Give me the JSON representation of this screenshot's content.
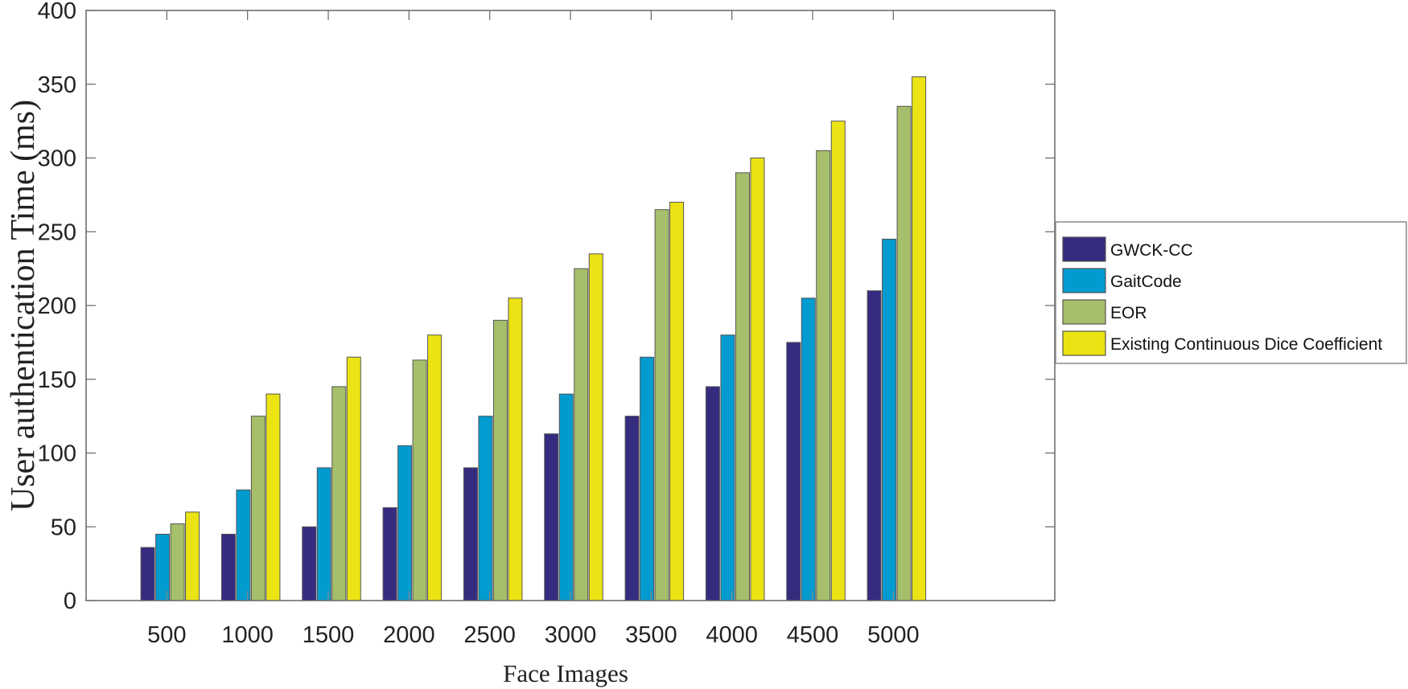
{
  "chart_data": {
    "type": "bar",
    "title": "",
    "xlabel": "Face Images",
    "ylabel": "User authentication Time (ms)",
    "categories": [
      "500",
      "1000",
      "1500",
      "2000",
      "2500",
      "3000",
      "3500",
      "4000",
      "4500",
      "5000"
    ],
    "x_values": [
      500,
      1000,
      1500,
      2000,
      2500,
      3000,
      3500,
      4000,
      4500,
      5000
    ],
    "xlim": [
      0,
      6000
    ],
    "ylim": [
      0,
      400
    ],
    "yticks": [
      0,
      50,
      100,
      150,
      200,
      250,
      300,
      350,
      400
    ],
    "grid": false,
    "legend_position": "outside-right",
    "series": [
      {
        "name": "GWCK-CC",
        "color": "#352c80",
        "values": [
          36,
          45,
          50,
          63,
          90,
          113,
          125,
          145,
          175,
          210
        ]
      },
      {
        "name": "GaitCode",
        "color": "#029bd0",
        "values": [
          45,
          75,
          90,
          105,
          125,
          140,
          165,
          180,
          205,
          245
        ]
      },
      {
        "name": "EOR",
        "color": "#a6bf6a",
        "values": [
          52,
          125,
          145,
          163,
          190,
          225,
          265,
          290,
          305,
          335
        ]
      },
      {
        "name": "Existing Continuous Dice Coefficient",
        "color": "#ece314",
        "values": [
          60,
          140,
          165,
          180,
          205,
          235,
          270,
          300,
          325,
          355
        ]
      }
    ]
  }
}
